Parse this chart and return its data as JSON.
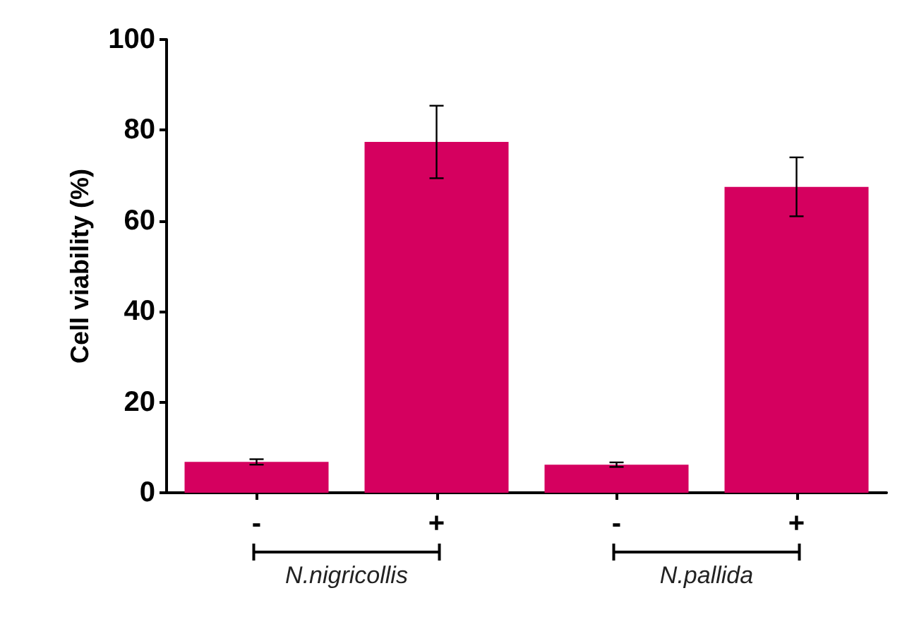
{
  "chart_data": {
    "type": "bar",
    "ylabel": "Cell viability (%)",
    "categories": [
      "-",
      "+",
      "-",
      "+"
    ],
    "values": [
      6.8,
      77.4,
      6.2,
      67.5
    ],
    "errors": [
      0.6,
      8,
      0.5,
      6.5
    ],
    "color": "#d5005f",
    "ylim": [
      0,
      100
    ],
    "yticks": [
      0,
      20,
      40,
      60,
      80,
      100
    ],
    "grid": false,
    "annotations": [
      "N.nigricollis",
      "N.pallida"
    ]
  }
}
